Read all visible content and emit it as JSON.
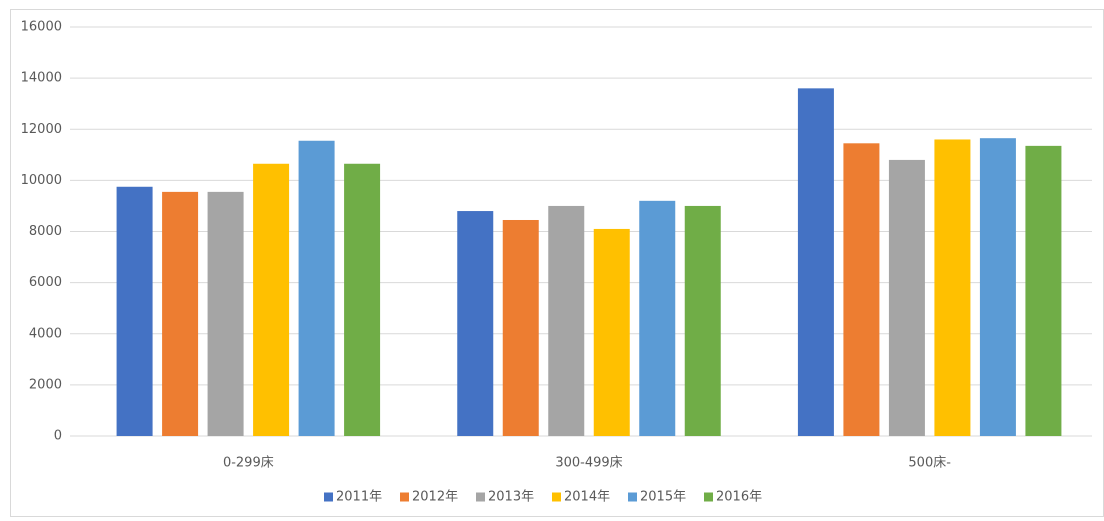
{
  "chart_data": {
    "type": "bar",
    "categories": [
      "0-299床",
      "300-499床",
      "500床-"
    ],
    "series": [
      {
        "name": "2011年",
        "color": "#4472c4",
        "values": [
          9750,
          8800,
          13600
        ]
      },
      {
        "name": "2012年",
        "color": "#ed7d31",
        "values": [
          9550,
          8450,
          11450
        ]
      },
      {
        "name": "2013年",
        "color": "#a5a5a5",
        "values": [
          9550,
          9000,
          10800
        ]
      },
      {
        "name": "2014年",
        "color": "#ffc000",
        "values": [
          10650,
          8100,
          11600
        ]
      },
      {
        "name": "2015年",
        "color": "#5b9bd5",
        "values": [
          11550,
          9200,
          11650
        ]
      },
      {
        "name": "2016年",
        "color": "#70ad47",
        "values": [
          10650,
          9000,
          11350
        ]
      }
    ],
    "ylim": [
      0,
      16000
    ],
    "yticks": [
      0,
      2000,
      4000,
      6000,
      8000,
      10000,
      12000,
      14000,
      16000
    ],
    "grid": true,
    "legend": "bottom"
  }
}
